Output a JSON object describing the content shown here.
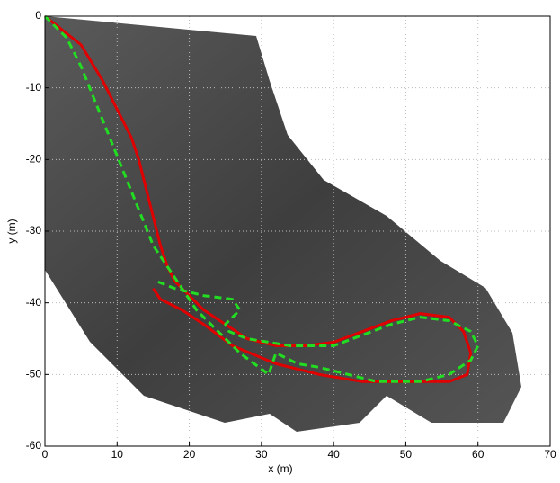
{
  "chart_data": {
    "type": "line",
    "xlabel": "x (m)",
    "ylabel": "y (m)",
    "xlim": [
      0,
      70
    ],
    "xticks": [
      0,
      10,
      20,
      30,
      40,
      50,
      60,
      70
    ],
    "ylim": [
      -60,
      0
    ],
    "yticks": [
      -60,
      -50,
      -40,
      -30,
      -20,
      -10,
      0
    ],
    "grid": true,
    "series": [
      {
        "color": "#e00000",
        "linestyle": "solid",
        "x": [
          0,
          5,
          8,
          10,
          12,
          13,
          14,
          15,
          16,
          17,
          18,
          20,
          22,
          25,
          28,
          32,
          36,
          40,
          44,
          48,
          52,
          56,
          58,
          59,
          58.5,
          56,
          50,
          44,
          38,
          32,
          26,
          22,
          19,
          16,
          15
        ],
        "values": [
          0,
          -4,
          -9,
          -13,
          -17,
          -20,
          -24,
          -28,
          -32,
          -35,
          -37,
          -39,
          -41,
          -43,
          -45,
          -46,
          -46,
          -45.5,
          -44,
          -42.5,
          -41.5,
          -42,
          -44,
          -47,
          -50,
          -51,
          -51,
          -51,
          -50,
          -48.5,
          -46,
          -43,
          -41,
          -39.5,
          -38
        ]
      },
      {
        "color": "#22dd22",
        "linestyle": "dashed",
        "x": [
          0,
          3,
          5,
          7,
          9,
          11,
          13,
          15,
          17,
          19,
          21,
          24,
          27,
          29,
          31,
          32,
          35,
          38,
          42,
          46,
          52,
          56,
          59,
          60,
          59,
          56,
          52,
          48,
          44,
          40,
          34,
          28,
          25.5,
          25,
          27,
          26,
          22,
          18,
          15.5
        ],
        "values": [
          0,
          -3,
          -7,
          -12,
          -17,
          -22,
          -27,
          -32,
          -35,
          -38,
          -41,
          -44,
          -47,
          -48.5,
          -50,
          -47,
          -48.5,
          -49,
          -50,
          -51,
          -51,
          -50,
          -48,
          -46,
          -44,
          -42.5,
          -42,
          -43,
          -44.5,
          -46,
          -46,
          -45,
          -44,
          -43,
          -41,
          -39.5,
          -39,
          -38,
          -37
        ]
      }
    ]
  }
}
